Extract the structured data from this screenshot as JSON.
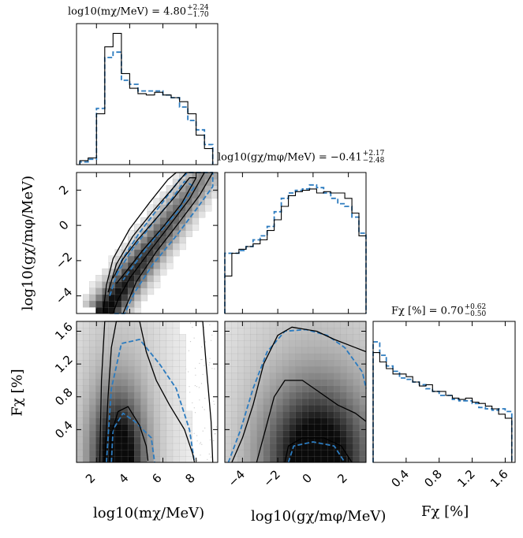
{
  "chart_data": {
    "type": "corner",
    "parameters": [
      {
        "key": "log_m",
        "label": "log10(mχ/MeV)",
        "range": [
          0.8,
          9.3
        ],
        "ticks": [
          2,
          4,
          6,
          8
        ],
        "tick_labels": [
          "2",
          "4",
          "6",
          "8"
        ],
        "title_value": "log10(mχ/MeV) = 4.80",
        "title_plus": "+2.24",
        "title_minus": "−1.70"
      },
      {
        "key": "log_g",
        "label": "log10(gχ/mφ/MeV)",
        "range": [
          -5.0,
          3.0
        ],
        "ticks": [
          -4,
          -2,
          0,
          2
        ],
        "tick_labels": [
          "−4",
          "−2",
          "0",
          "2"
        ],
        "title_value": "log10(gχ/mφ/MeV) = −0.41",
        "title_plus": "+2.17",
        "title_minus": "−2.48"
      },
      {
        "key": "F",
        "label": "Fχ [%]",
        "range": [
          0.0,
          1.72
        ],
        "ticks": [
          0.4,
          0.8,
          1.2,
          1.6
        ],
        "tick_labels": [
          "0.4",
          "0.8",
          "1.2",
          "1.6"
        ],
        "title_value": "Fχ [%] = 0.70",
        "title_plus": "+0.62",
        "title_minus": "−0.50"
      }
    ],
    "series": [
      {
        "name": "",
        "style": "solid",
        "color": "#000000"
      },
      {
        "name": "",
        "style": "dashed",
        "color": "#2c7bbf"
      }
    ],
    "histograms": {
      "log_m": {
        "bin_edges": [
          1.0,
          1.5,
          2.0,
          2.5,
          3.0,
          3.5,
          4.0,
          4.5,
          5.0,
          5.5,
          6.0,
          6.5,
          7.0,
          7.5,
          8.0,
          8.5,
          9.0
        ],
        "solid": [
          0.03,
          0.05,
          0.38,
          0.88,
          0.98,
          0.68,
          0.57,
          0.53,
          0.52,
          0.54,
          0.52,
          0.5,
          0.47,
          0.38,
          0.22,
          0.12
        ],
        "dashed": [
          0.02,
          0.04,
          0.42,
          0.8,
          0.84,
          0.63,
          0.6,
          0.55,
          0.55,
          0.55,
          0.52,
          0.5,
          0.43,
          0.33,
          0.26,
          0.15
        ]
      },
      "log_g": {
        "bin_edges": [
          -5.0,
          -4.6,
          -4.2,
          -3.8,
          -3.4,
          -3.0,
          -2.6,
          -2.2,
          -1.8,
          -1.4,
          -1.0,
          -0.6,
          -0.2,
          0.2,
          0.6,
          1.0,
          1.4,
          1.8,
          2.2,
          2.6,
          3.0
        ],
        "solid": [
          0.28,
          0.45,
          0.48,
          0.5,
          0.52,
          0.55,
          0.62,
          0.7,
          0.8,
          0.88,
          0.91,
          0.92,
          0.93,
          0.9,
          0.91,
          0.9,
          0.9,
          0.86,
          0.75,
          0.58
        ],
        "dashed": [
          0.45,
          0.45,
          0.47,
          0.5,
          0.55,
          0.58,
          0.65,
          0.76,
          0.86,
          0.9,
          0.92,
          0.93,
          0.96,
          0.94,
          0.9,
          0.86,
          0.82,
          0.8,
          0.72,
          0.6
        ]
      },
      "F": {
        "bin_edges": [
          0.0,
          0.08,
          0.16,
          0.24,
          0.32,
          0.4,
          0.48,
          0.56,
          0.64,
          0.72,
          0.8,
          0.88,
          0.96,
          1.04,
          1.12,
          1.2,
          1.28,
          1.36,
          1.44,
          1.52,
          1.6,
          1.68
        ],
        "solid": [
          0.82,
          0.75,
          0.7,
          0.66,
          0.66,
          0.64,
          0.6,
          0.57,
          0.58,
          0.53,
          0.53,
          0.5,
          0.48,
          0.47,
          0.48,
          0.45,
          0.44,
          0.42,
          0.4,
          0.36,
          0.33
        ],
        "dashed": [
          0.9,
          0.8,
          0.72,
          0.68,
          0.63,
          0.62,
          0.6,
          0.58,
          0.55,
          0.53,
          0.5,
          0.5,
          0.47,
          0.46,
          0.46,
          0.44,
          0.41,
          0.4,
          0.39,
          0.4,
          0.38
        ]
      }
    },
    "contours_2d": {
      "log_m_vs_log_g": {
        "solid": [
          {
            "level": 1,
            "points": [
              [
                3.0,
                -3.0
              ],
              [
                3.6,
                -1.9
              ],
              [
                4.5,
                -0.8
              ],
              [
                5.6,
                0.4
              ],
              [
                6.7,
                1.6
              ],
              [
                7.6,
                2.7
              ],
              [
                8.0,
                2.7
              ],
              [
                7.1,
                1.2
              ],
              [
                6.0,
                -0.1
              ],
              [
                4.8,
                -1.4
              ],
              [
                3.8,
                -2.6
              ],
              [
                3.2,
                -3.3
              ]
            ]
          },
          {
            "level": 2,
            "points": [
              [
                2.7,
                -3.8
              ],
              [
                3.2,
                -2.2
              ],
              [
                4.2,
                -0.6
              ],
              [
                5.4,
                0.8
              ],
              [
                6.6,
                2.1
              ],
              [
                7.4,
                3.0
              ],
              [
                8.5,
                3.0
              ],
              [
                7.6,
                1.5
              ],
              [
                6.4,
                0.0
              ],
              [
                5.1,
                -1.6
              ],
              [
                4.0,
                -3.0
              ],
              [
                3.3,
                -4.2
              ],
              [
                3.0,
                -5.0
              ],
              [
                2.8,
                -5.0
              ]
            ]
          },
          {
            "level": 3,
            "points": [
              [
                2.4,
                -5.0
              ],
              [
                2.6,
                -3.4
              ],
              [
                3.0,
                -1.9
              ],
              [
                4.0,
                -0.2
              ],
              [
                5.2,
                1.3
              ],
              [
                6.3,
                2.6
              ],
              [
                6.8,
                3.0
              ],
              [
                9.0,
                3.0
              ],
              [
                8.2,
                1.7
              ],
              [
                7.0,
                0.2
              ],
              [
                5.6,
                -1.5
              ],
              [
                4.4,
                -3.2
              ],
              [
                3.6,
                -5.0
              ]
            ]
          }
        ],
        "dashed": [
          {
            "level": 1,
            "points": [
              [
                3.2,
                -2.8
              ],
              [
                4.2,
                -1.3
              ],
              [
                5.2,
                -0.1
              ],
              [
                6.3,
                1.2
              ],
              [
                7.3,
                2.5
              ],
              [
                7.9,
                2.2
              ],
              [
                6.9,
                0.8
              ],
              [
                5.7,
                -0.5
              ],
              [
                4.6,
                -1.8
              ],
              [
                3.6,
                -3.1
              ]
            ]
          },
          {
            "level": 2,
            "points": [
              [
                2.8,
                -4.0
              ],
              [
                3.5,
                -2.0
              ],
              [
                4.6,
                -0.4
              ],
              [
                5.9,
                1.2
              ],
              [
                7.0,
                2.6
              ],
              [
                7.5,
                3.0
              ],
              [
                9.0,
                3.0
              ],
              [
                9.0,
                2.2
              ],
              [
                8.0,
                0.9
              ],
              [
                6.8,
                -0.6
              ],
              [
                5.4,
                -2.2
              ],
              [
                4.3,
                -3.8
              ],
              [
                3.7,
                -5.0
              ],
              [
                3.0,
                -5.0
              ]
            ]
          }
        ]
      },
      "log_m_vs_F": {
        "solid": [
          {
            "level": 1,
            "points": [
              [
                2.8,
                0.02
              ],
              [
                2.9,
                0.35
              ],
              [
                3.3,
                0.62
              ],
              [
                3.9,
                0.68
              ],
              [
                4.6,
                0.45
              ],
              [
                5.0,
                0.2
              ],
              [
                5.1,
                0.02
              ]
            ]
          },
          {
            "level": 2,
            "points": [
              [
                2.5,
                0.0
              ],
              [
                2.7,
                0.8
              ],
              [
                2.9,
                1.4
              ],
              [
                3.2,
                1.72
              ],
              [
                4.6,
                1.72
              ],
              [
                5.0,
                1.35
              ],
              [
                5.6,
                1.0
              ],
              [
                6.4,
                0.7
              ],
              [
                7.3,
                0.4
              ],
              [
                7.8,
                0.1
              ],
              [
                7.9,
                0.0
              ]
            ]
          },
          {
            "level": 3,
            "points": [
              [
                2.2,
                0.0
              ],
              [
                2.3,
                1.0
              ],
              [
                2.5,
                1.72
              ],
              [
                8.4,
                1.72
              ],
              [
                8.6,
                1.2
              ],
              [
                8.9,
                0.5
              ],
              [
                9.0,
                0.0
              ]
            ]
          }
        ],
        "dashed": [
          {
            "level": 1,
            "points": [
              [
                2.9,
                0.0
              ],
              [
                3.0,
                0.4
              ],
              [
                3.6,
                0.6
              ],
              [
                4.3,
                0.5
              ],
              [
                5.3,
                0.3
              ],
              [
                5.5,
                0.0
              ]
            ]
          },
          {
            "level": 2,
            "points": [
              [
                2.6,
                0.0
              ],
              [
                2.9,
                0.9
              ],
              [
                3.5,
                1.45
              ],
              [
                4.6,
                1.5
              ],
              [
                5.8,
                1.2
              ],
              [
                6.8,
                0.9
              ],
              [
                7.6,
                0.4
              ],
              [
                7.9,
                0.0
              ]
            ]
          }
        ]
      },
      "log_g_vs_F": {
        "solid": [
          {
            "level": 1,
            "points": [
              [
                -1.6,
                0.0
              ],
              [
                -1.4,
                0.2
              ],
              [
                -0.6,
                0.3
              ],
              [
                0.6,
                0.3
              ],
              [
                1.6,
                0.2
              ],
              [
                2.2,
                0.0
              ]
            ]
          },
          {
            "level": 2,
            "points": [
              [
                -3.2,
                0.0
              ],
              [
                -2.7,
                0.4
              ],
              [
                -2.2,
                0.8
              ],
              [
                -1.6,
                1.0
              ],
              [
                -0.6,
                1.0
              ],
              [
                0.4,
                0.85
              ],
              [
                1.4,
                0.7
              ],
              [
                2.4,
                0.6
              ],
              [
                3.0,
                0.5
              ]
            ]
          },
          {
            "level": 3,
            "points": [
              [
                -4.6,
                0.0
              ],
              [
                -4.0,
                0.3
              ],
              [
                -3.4,
                0.7
              ],
              [
                -2.8,
                1.2
              ],
              [
                -2.0,
                1.55
              ],
              [
                -1.2,
                1.65
              ],
              [
                0.2,
                1.6
              ],
              [
                1.2,
                1.5
              ],
              [
                2.4,
                1.4
              ],
              [
                3.0,
                1.35
              ]
            ]
          }
        ],
        "dashed": [
          {
            "level": 1,
            "points": [
              [
                -1.4,
                0.0
              ],
              [
                -1.1,
                0.2
              ],
              [
                0.0,
                0.25
              ],
              [
                1.2,
                0.2
              ],
              [
                1.8,
                0.0
              ]
            ]
          },
          {
            "level": 2,
            "points": [
              [
                -4.8,
                0.0
              ],
              [
                -4.1,
                0.4
              ],
              [
                -3.4,
                0.9
              ],
              [
                -2.6,
                1.35
              ],
              [
                -1.6,
                1.6
              ],
              [
                -0.4,
                1.62
              ],
              [
                0.8,
                1.55
              ],
              [
                1.8,
                1.4
              ],
              [
                2.8,
                1.1
              ],
              [
                3.0,
                0.9
              ]
            ]
          }
        ]
      }
    },
    "density_2d": {
      "log_m_vs_log_g": {
        "type": "ridge",
        "from": [
          2.6,
          -4.8
        ],
        "to": [
          8.6,
          3.0
        ],
        "width": 1.2
      },
      "log_m_vs_F": {
        "type": "peak",
        "center": [
          3.3,
          0.05
        ],
        "spread": [
          1.1,
          0.55
        ]
      },
      "log_g_vs_F": {
        "type": "peak",
        "center": [
          0.2,
          0.05
        ],
        "spread": [
          2.0,
          0.6
        ]
      }
    }
  }
}
